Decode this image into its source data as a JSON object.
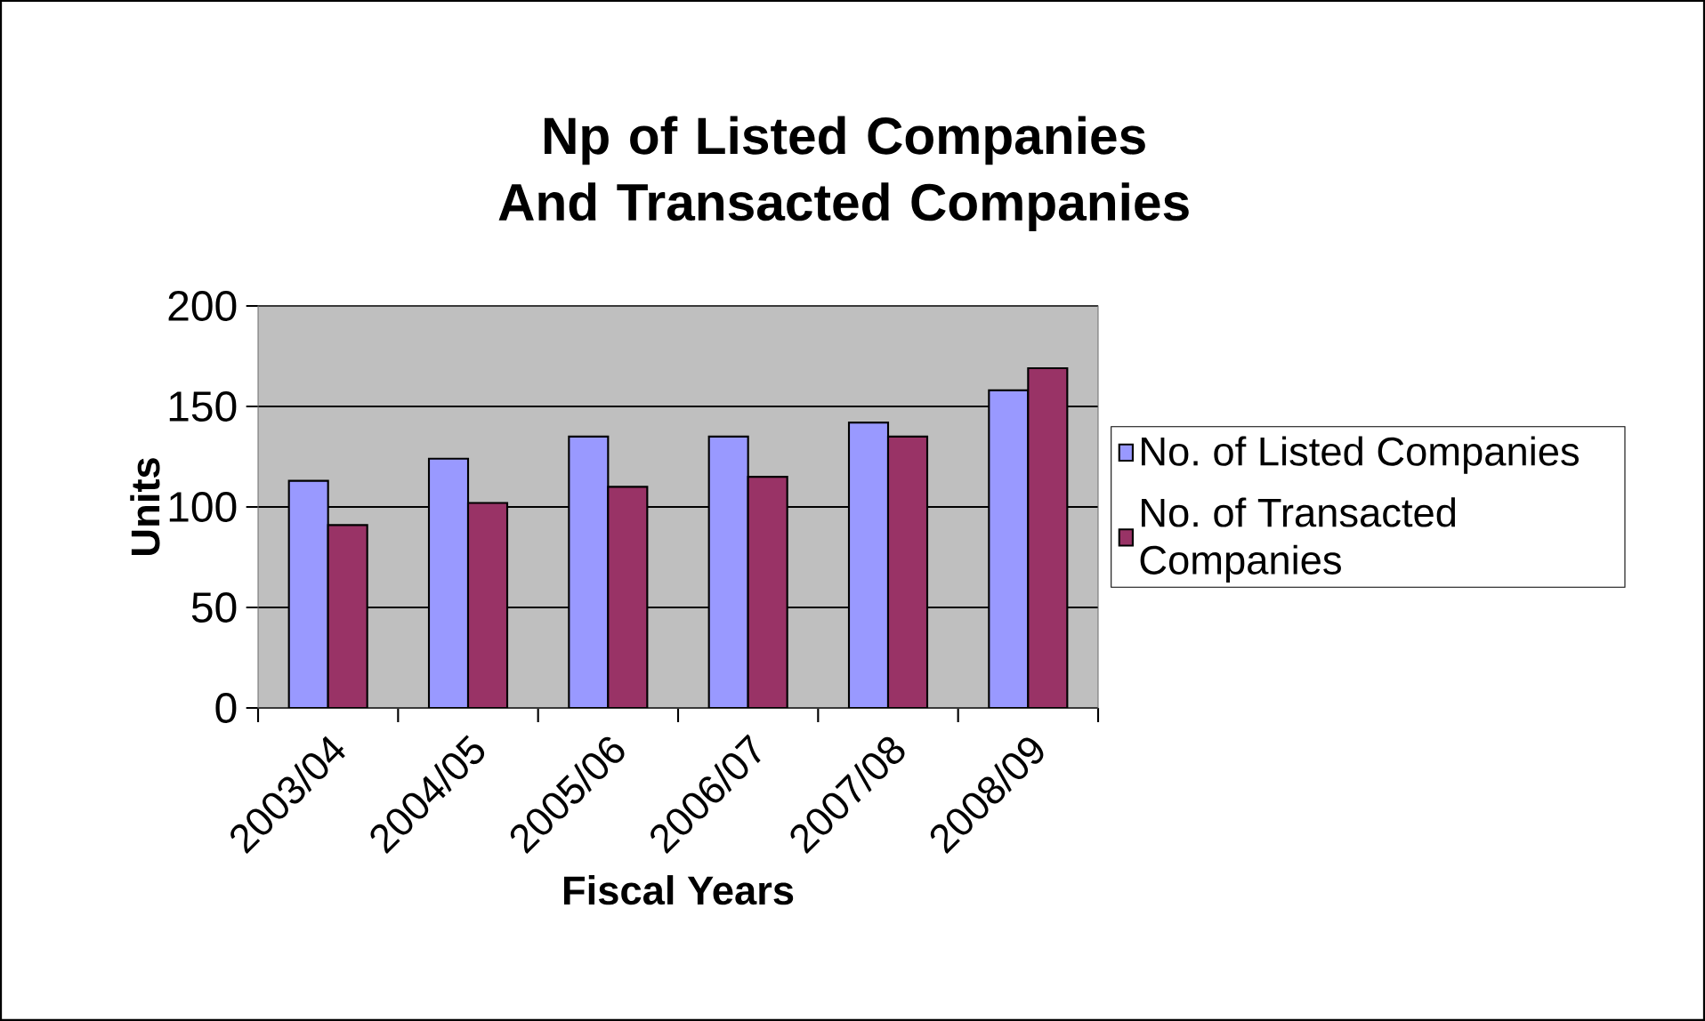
{
  "chart_data": {
    "type": "bar",
    "title": "Np of Listed Companies And Transacted Companies",
    "xlabel": "Fiscal Years",
    "ylabel": "Units",
    "categories": [
      "2003/04",
      "2004/05",
      "2005/06",
      "2006/07",
      "2007/08",
      "2008/09"
    ],
    "series": [
      {
        "name": "No. of Listed Companies",
        "color": "#9999ff",
        "values": [
          113,
          124,
          135,
          135,
          142,
          158
        ]
      },
      {
        "name": "No. of Transacted Companies",
        "color": "#993366",
        "values": [
          91,
          102,
          110,
          115,
          135,
          169
        ]
      }
    ],
    "ylim": [
      0,
      200
    ],
    "yticks": [
      0,
      50,
      100,
      150,
      200
    ],
    "grid": "y",
    "legend": "right"
  }
}
